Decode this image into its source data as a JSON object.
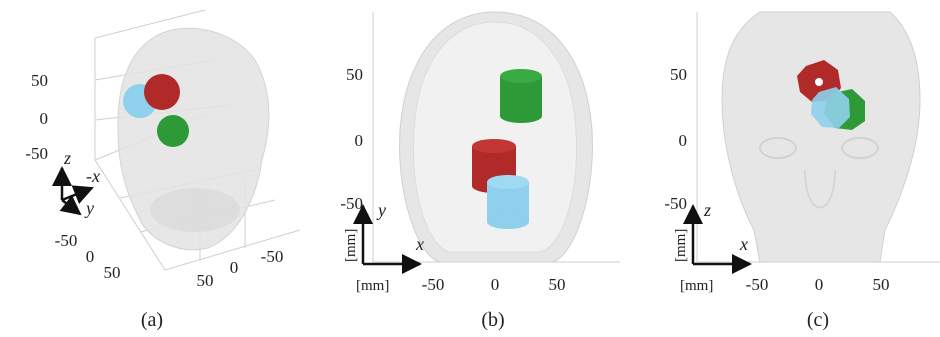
{
  "panels": [
    {
      "caption": "(a)",
      "z_ticks": [
        "50",
        "0",
        "-50"
      ],
      "y_ticks": [
        "-50",
        "0",
        "50"
      ],
      "x_ticks": [
        "50",
        "0",
        "-50"
      ],
      "axis_labels": {
        "z": "z",
        "x": "-x",
        "y": "y"
      }
    },
    {
      "caption": "(b)",
      "y_ticks": [
        "50",
        "0",
        "-50"
      ],
      "x_ticks": [
        "-50",
        "0",
        "50"
      ],
      "axis_labels": {
        "y": "y",
        "x": "x"
      },
      "unit_y": "[mm]",
      "unit_x": "[mm]"
    },
    {
      "caption": "(c)",
      "y_ticks": [
        "50",
        "0",
        "-50"
      ],
      "x_ticks": [
        "-50",
        "0",
        "50"
      ],
      "axis_labels": {
        "z": "z",
        "x": "x"
      },
      "unit_y": "[mm]",
      "unit_x": "[mm]"
    }
  ],
  "colors": {
    "red": "#b02a2a",
    "green": "#2e9a37",
    "blue": "#8fd0ec",
    "head": "#e3e3e3",
    "axis": "#222222"
  }
}
